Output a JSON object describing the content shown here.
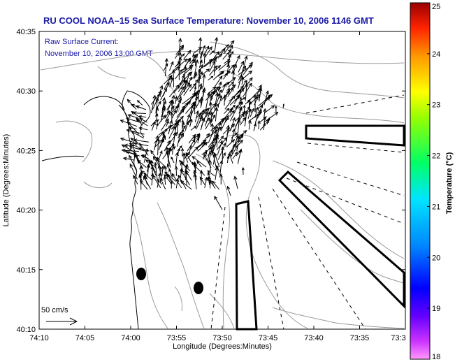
{
  "chart_data": {
    "type": "quiver",
    "title": "RU COOL  NOAA–15  Sea Surface Temperature:  November 10, 2006 1146 GMT",
    "annotation_lines": [
      "Raw Surface Current:",
      "November 10, 2006 13:00 GMT"
    ],
    "xlabel": "Longitude (Degrees:Minutes)",
    "ylabel": "Latitude (Degrees:Minutes)",
    "x_ticks": [
      "74:10",
      "74:05",
      "74:00",
      "73:55",
      "73:50",
      "73:45",
      "73:40",
      "73:35",
      "73:3"
    ],
    "y_ticks": [
      "40:10",
      "40:15",
      "40:20",
      "40:25",
      "40:30",
      "40:35"
    ],
    "xlim": [
      -74.1667,
      -73.5
    ],
    "ylim": [
      40.1667,
      40.5833
    ],
    "scale_label": "50 cm/s",
    "colorbar": {
      "label": "Temperature (°C)",
      "range": [
        18,
        25
      ],
      "ticks": [
        "18",
        "19",
        "20",
        "21",
        "22",
        "23",
        "24",
        "25"
      ]
    },
    "vector_field": {
      "units": "cm/s",
      "region_lon": [
        -74.02,
        -73.8
      ],
      "region_lat": [
        40.31,
        40.55
      ],
      "dominant_direction": "northeast",
      "count_approx": 300
    },
    "markers": [
      {
        "lon": -73.9833,
        "lat": 40.2433
      },
      {
        "lon": -73.9367,
        "lat": 40.225
      }
    ]
  }
}
